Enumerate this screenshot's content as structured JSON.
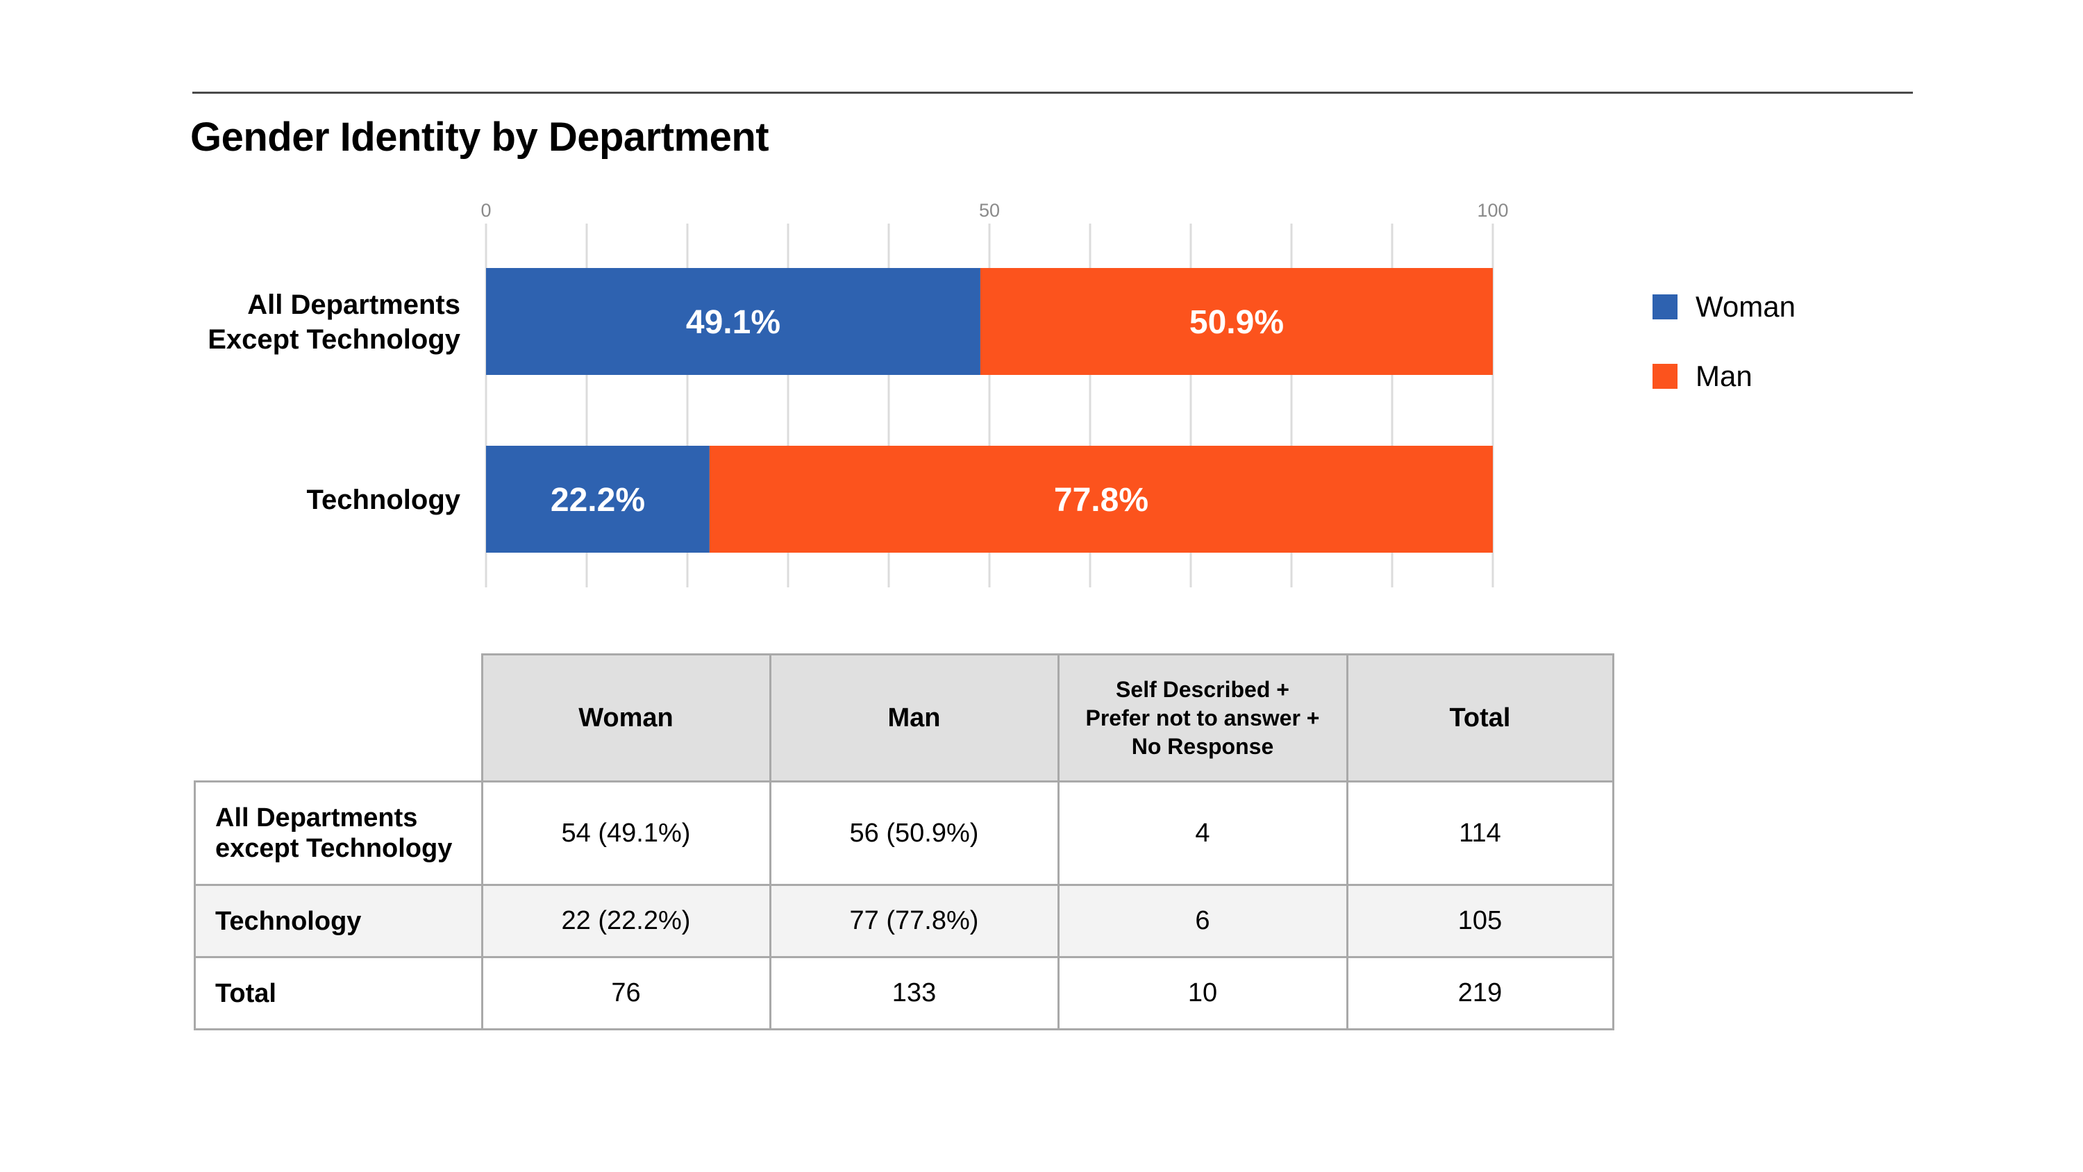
{
  "page": {
    "title": "Gender Identity by Department"
  },
  "chart_data": {
    "type": "bar",
    "orientation": "horizontal",
    "stacked": true,
    "categories": [
      "All Departments\nExcept Technology",
      "Technology"
    ],
    "series": [
      {
        "name": "Woman",
        "values": [
          49.1,
          22.2
        ],
        "labels": [
          "49.1%",
          "22.2%"
        ],
        "color": "#2e62b0"
      },
      {
        "name": "Man",
        "values": [
          50.9,
          77.8
        ],
        "labels": [
          "50.9%",
          "77.8%"
        ],
        "color": "#fc531d"
      }
    ],
    "xlim": [
      0,
      100
    ],
    "xticks": [
      0,
      50,
      100
    ],
    "grid_step": 10,
    "grid": true,
    "legend": "right",
    "title": "",
    "xlabel": "",
    "ylabel": ""
  },
  "table": {
    "headers": [
      "",
      "Woman",
      "Man",
      "Self Described +\nPrefer not to answer +\nNo Response",
      "Total"
    ],
    "rows": [
      [
        "All Departments\nexcept Technology",
        "54 (49.1%)",
        "56 (50.9%)",
        "4",
        "114"
      ],
      [
        "Technology",
        "22 (22.2%)",
        "77 (77.8%)",
        "6",
        "105"
      ],
      [
        "Total",
        "76",
        "133",
        "10",
        "219"
      ]
    ]
  }
}
